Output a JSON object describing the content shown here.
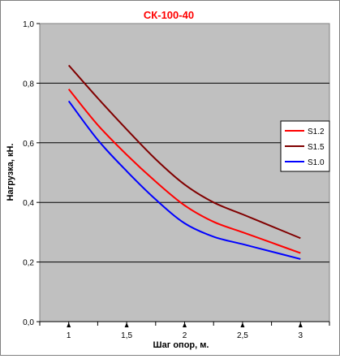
{
  "chart_data": {
    "type": "line",
    "title": "СК-100-40",
    "xlabel": "Шаг опор, м.",
    "ylabel": "Нагрузка, кН.",
    "x": [
      1,
      1.25,
      1.5,
      1.75,
      2,
      2.25,
      2.5,
      2.75,
      3
    ],
    "xticks": [
      "1",
      "1,5",
      "2",
      "2,5",
      "3"
    ],
    "yticks": [
      "0,0",
      "0,2",
      "0,4",
      "0,6",
      "0,8",
      "1,0"
    ],
    "xlim": [
      0.75,
      3.25
    ],
    "ylim": [
      0,
      1
    ],
    "grid": "horizontal",
    "legend_position": "right",
    "plot_background": "#c0c0c0",
    "series": [
      {
        "name": "S1.2",
        "color": "#ff0000",
        "values": [
          0.78,
          0.66,
          0.56,
          0.47,
          0.39,
          0.335,
          0.3,
          0.265,
          0.23
        ]
      },
      {
        "name": "S1.5",
        "color": "#800000",
        "values": [
          0.86,
          0.75,
          0.645,
          0.545,
          0.46,
          0.4,
          0.36,
          0.32,
          0.28
        ]
      },
      {
        "name": "S1.0",
        "color": "#0000ff",
        "values": [
          0.74,
          0.61,
          0.505,
          0.41,
          0.33,
          0.285,
          0.26,
          0.235,
          0.21
        ]
      }
    ]
  }
}
